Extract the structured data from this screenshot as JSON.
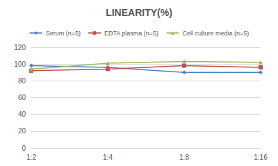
{
  "chart_data": {
    "type": "line",
    "title": "LINEARITY(%)",
    "categories": [
      "1:2",
      "1:4",
      "1:8",
      "1:16"
    ],
    "series": [
      {
        "name": "Serum (n=5)",
        "color": "#4f81bd",
        "marker": "diamond",
        "values": [
          98,
          96,
          90,
          90
        ]
      },
      {
        "name": "EDTA plasma (n=5)",
        "color": "#c0504d",
        "marker": "square",
        "values": [
          92,
          94,
          98,
          96
        ]
      },
      {
        "name": "Cell culture media (n=5)",
        "color": "#9bbb59",
        "marker": "triangle",
        "values": [
          94,
          101,
          103,
          102
        ]
      }
    ],
    "ylim": [
      0,
      120
    ],
    "yticks": [
      0,
      20,
      40,
      60,
      80,
      100,
      120
    ],
    "grid": true,
    "legend": "top"
  }
}
